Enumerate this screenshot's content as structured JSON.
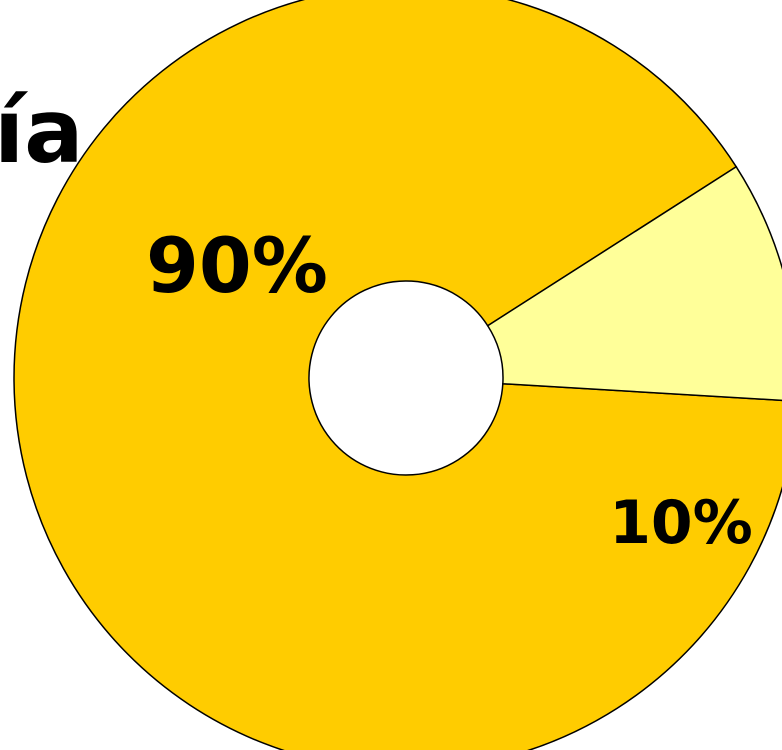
{
  "title_fragment": "ía",
  "chart_data": {
    "type": "pie",
    "style": "donut",
    "slices": [
      {
        "label": "90%",
        "value": 90,
        "color": "#FFCC00"
      },
      {
        "label": "10%",
        "value": 10,
        "color": "#FFFF99"
      }
    ],
    "outline_color": "#000000",
    "legend": "none"
  }
}
